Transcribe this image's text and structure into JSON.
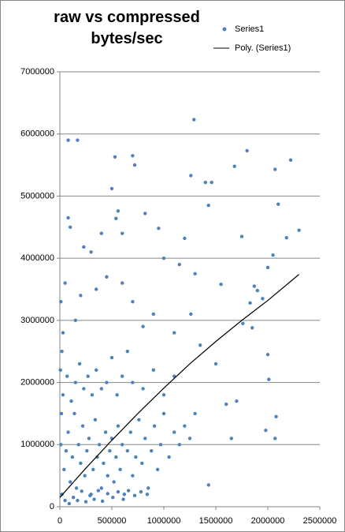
{
  "chart_data": {
    "type": "scatter",
    "title": "raw vs compressed bytes/sec",
    "xlim": [
      0,
      2500000
    ],
    "xticks": [
      0,
      500000,
      1000000,
      1500000,
      2000000,
      2500000
    ],
    "ylim": [
      0,
      7000000
    ],
    "yticks": [
      0,
      1000000,
      2000000,
      3000000,
      4000000,
      5000000,
      6000000,
      7000000
    ],
    "grid": true,
    "legend": "top-right",
    "series": [
      {
        "name": "Series1",
        "color": "#4f81bd",
        "mode": "markers",
        "x": [
          80000,
          170000,
          500000,
          530000,
          700000,
          720000,
          1290000,
          1260000,
          1800000,
          1680000,
          2070000,
          2220000,
          1400000,
          1460000,
          2100000,
          2300000,
          2180000,
          560000,
          540000,
          820000,
          80000,
          100000,
          1200000,
          1430000,
          1750000,
          2050000,
          600000,
          400000,
          230000,
          300000,
          950000,
          1000000,
          1150000,
          1300000,
          1550000,
          1870000,
          1900000,
          2000000,
          1830000,
          1950000,
          1760000,
          1700000,
          1600000,
          1850000,
          2000000,
          2010000,
          1980000,
          2070000,
          2080000,
          1430000,
          1650000,
          1500000,
          1260000,
          1350000,
          1100000,
          900000,
          800000,
          700000,
          650000,
          600000,
          450000,
          350000,
          200000,
          150000,
          50000,
          30000,
          10000,
          20000,
          20000,
          40000,
          60000,
          80000,
          100000,
          120000,
          140000,
          160000,
          180000,
          200000,
          220000,
          240000,
          260000,
          280000,
          300000,
          320000,
          340000,
          360000,
          380000,
          400000,
          420000,
          440000,
          460000,
          480000,
          500000,
          520000,
          540000,
          560000,
          580000,
          600000,
          620000,
          650000,
          680000,
          700000,
          730000,
          760000,
          790000,
          820000,
          850000,
          880000,
          910000,
          940000,
          970000,
          1000000,
          1050000,
          1100000,
          1150000,
          1200000,
          1250000,
          1300000,
          30000,
          70000,
          110000,
          150000,
          190000,
          230000,
          270000,
          310000,
          350000,
          400000,
          450000,
          500000,
          550000,
          600000,
          700000,
          800000,
          900000,
          1000000,
          1100000,
          50000,
          90000,
          130000,
          170000,
          210000,
          250000,
          290000,
          330000,
          370000,
          410000,
          460000,
          510000,
          560000,
          610000,
          660000,
          720000,
          780000,
          840000,
          10000,
          15000,
          5000
        ],
        "values": [
          5900000,
          5900000,
          5120000,
          5630000,
          5650000,
          5500000,
          6230000,
          5330000,
          5730000,
          5480000,
          5430000,
          5580000,
          5220000,
          5220000,
          4870000,
          4450000,
          4330000,
          4760000,
          4640000,
          4720000,
          4650000,
          4500000,
          4320000,
          4850000,
          4350000,
          4050000,
          4400000,
          4400000,
          4180000,
          4100000,
          4480000,
          4000000,
          3900000,
          3750000,
          3580000,
          3550000,
          3480000,
          3850000,
          3280000,
          3350000,
          2950000,
          1700000,
          1650000,
          2880000,
          2450000,
          2050000,
          1230000,
          1100000,
          1450000,
          350000,
          1100000,
          2300000,
          3100000,
          2600000,
          2800000,
          3100000,
          2900000,
          3300000,
          2500000,
          3600000,
          3700000,
          3500000,
          3400000,
          3000000,
          3600000,
          2800000,
          3300000,
          2500000,
          200000,
          600000,
          900000,
          1200000,
          400000,
          800000,
          1500000,
          300000,
          1000000,
          700000,
          1300000,
          500000,
          900000,
          1100000,
          200000,
          600000,
          1400000,
          800000,
          1000000,
          300000,
          700000,
          1200000,
          500000,
          900000,
          1100000,
          400000,
          800000,
          1300000,
          600000,
          1000000,
          200000,
          900000,
          1200000,
          500000,
          800000,
          1400000,
          700000,
          1100000,
          300000,
          900000,
          1300000,
          600000,
          1000000,
          1500000,
          800000,
          1200000,
          1000000,
          1300000,
          1100000,
          1500000,
          1800000,
          2100000,
          1700000,
          2000000,
          2300000,
          1900000,
          2100000,
          1800000,
          2200000,
          1900000,
          2000000,
          2400000,
          1800000,
          2100000,
          2000000,
          1900000,
          2200000,
          1800000,
          2100000,
          100000,
          50000,
          150000,
          100000,
          250000,
          80000,
          180000,
          120000,
          260000,
          90000,
          210000,
          150000,
          240000,
          120000,
          260000,
          180000,
          240000,
          200000,
          1000000,
          1500000,
          2200000
        ]
      },
      {
        "name": "Poly. (Series1)",
        "color": "#000000",
        "mode": "line",
        "x": [
          0,
          250000,
          500000,
          750000,
          1000000,
          1250000,
          1500000,
          1750000,
          2000000,
          2300000
        ],
        "values": [
          150000,
          620000,
          1070000,
          1500000,
          1910000,
          2300000,
          2660000,
          3000000,
          3320000,
          3740000
        ]
      }
    ]
  }
}
